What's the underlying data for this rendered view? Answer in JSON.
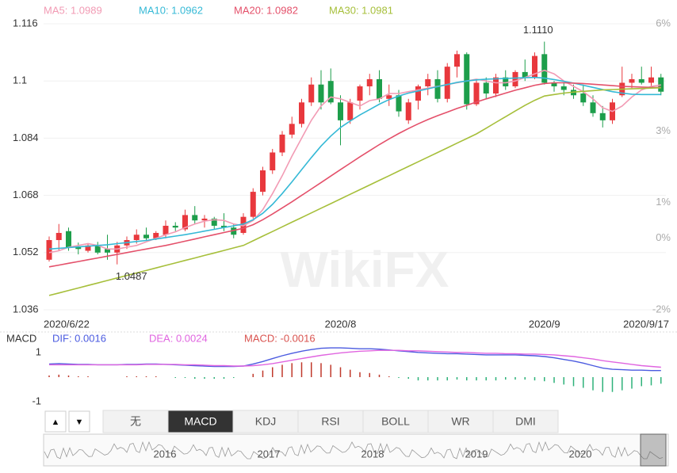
{
  "chart_data": [
    {
      "type": "candlestick",
      "categories": [
        "2020/6/22",
        null,
        null,
        null,
        null,
        null,
        null,
        null,
        null,
        null,
        null,
        null,
        null,
        null,
        null,
        null,
        null,
        null,
        null,
        null,
        null,
        null,
        null,
        null,
        null,
        null,
        null,
        null,
        null,
        null,
        "2020/8",
        null,
        null,
        null,
        null,
        null,
        null,
        null,
        null,
        null,
        null,
        null,
        null,
        null,
        null,
        null,
        null,
        null,
        null,
        null,
        null,
        "2020/9",
        null,
        null,
        null,
        null,
        null,
        null,
        null,
        null,
        null,
        null,
        null,
        "2020/9/17"
      ],
      "open": [
        1.05,
        1.0555,
        1.058,
        1.0535,
        1.0525,
        1.054,
        1.053,
        1.052,
        1.054,
        1.0555,
        1.057,
        1.056,
        1.057,
        1.0595,
        1.0585,
        1.0625,
        1.061,
        1.0615,
        1.0595,
        1.059,
        1.0575,
        1.062,
        1.069,
        1.075,
        1.08,
        1.085,
        1.088,
        1.094,
        1.099,
        1.1,
        1.094,
        1.089,
        1.0945,
        1.0985,
        1.1005,
        1.095,
        1.096,
        1.089,
        1.0945,
        1.0985,
        1.1005,
        1.095,
        1.104,
        1.1075,
        1.0935,
        1.0995,
        1.0965,
        1.101,
        1.0985,
        1.1025,
        1.101,
        1.1075,
        1.0995,
        1.0985,
        1.0975,
        1.0965,
        1.094,
        1.091,
        1.089,
        1.096,
        1.0995,
        1.1005,
        1.0995,
        1.101
      ],
      "high": [
        1.0565,
        1.06,
        1.059,
        1.0548,
        1.0545,
        1.055,
        1.057,
        1.055,
        1.0565,
        1.0585,
        1.059,
        1.058,
        1.061,
        1.0605,
        1.064,
        1.065,
        1.0625,
        1.062,
        1.063,
        1.06,
        1.063,
        1.07,
        1.076,
        1.081,
        1.086,
        1.09,
        1.095,
        1.101,
        1.103,
        1.1035,
        1.096,
        1.095,
        1.099,
        1.102,
        1.103,
        1.099,
        1.0975,
        1.095,
        1.099,
        1.102,
        1.103,
        1.105,
        1.1085,
        1.108,
        1.1005,
        1.101,
        1.102,
        1.103,
        1.103,
        1.106,
        1.108,
        1.111,
        1.1,
        1.0995,
        1.099,
        1.099,
        1.096,
        1.093,
        1.095,
        1.104,
        1.102,
        1.104,
        1.104,
        1.102
      ],
      "low": [
        1.0495,
        1.0525,
        1.0525,
        1.0515,
        1.052,
        1.0515,
        1.05,
        1.0487,
        1.053,
        1.0545,
        1.0555,
        1.0555,
        1.056,
        1.058,
        1.058,
        1.06,
        1.059,
        1.0585,
        1.058,
        1.056,
        1.057,
        1.0615,
        1.068,
        1.074,
        1.079,
        1.084,
        1.087,
        1.093,
        1.092,
        1.0935,
        1.082,
        1.088,
        1.092,
        1.096,
        1.094,
        1.093,
        1.09,
        1.088,
        1.092,
        1.096,
        1.094,
        1.094,
        1.101,
        1.092,
        1.093,
        1.095,
        1.0955,
        1.0975,
        1.098,
        1.1,
        1.1005,
        1.099,
        1.097,
        1.096,
        1.095,
        1.093,
        1.09,
        1.087,
        1.088,
        1.0955,
        1.098,
        1.099,
        1.0985,
        1.096
      ],
      "close": [
        1.0555,
        1.0575,
        1.0535,
        1.053,
        1.054,
        1.052,
        1.052,
        1.054,
        1.0555,
        1.057,
        1.056,
        1.0575,
        1.0595,
        1.059,
        1.0625,
        1.061,
        1.0615,
        1.0595,
        1.059,
        1.057,
        1.062,
        1.069,
        1.075,
        1.08,
        1.085,
        1.088,
        1.094,
        1.099,
        1.094,
        1.094,
        1.089,
        1.094,
        1.0985,
        1.1005,
        1.095,
        1.096,
        1.0915,
        1.094,
        1.0985,
        1.1005,
        1.095,
        1.104,
        1.1075,
        1.0935,
        1.0995,
        1.0965,
        1.101,
        1.0985,
        1.1025,
        1.101,
        1.107,
        1.0995,
        1.0985,
        1.0975,
        1.096,
        1.094,
        1.091,
        1.089,
        1.094,
        1.0995,
        1.1005,
        1.0995,
        1.101,
        1.097
      ],
      "up_color": "#e8383d",
      "down_color": "#1d9e4b",
      "series": [
        {
          "name": "MA5: 1.0989",
          "color": "#f29bb4",
          "values": [
            1.052,
            1.0525,
            1.0535,
            1.054,
            1.0545,
            1.054,
            1.053,
            1.053,
            1.0535,
            1.054,
            1.055,
            1.056,
            1.057,
            1.0578,
            1.059,
            1.06,
            1.0608,
            1.0612,
            1.061,
            1.06,
            1.0595,
            1.061,
            1.064,
            1.0685,
            1.0735,
            1.079,
            1.084,
            1.089,
            1.093,
            1.0955,
            1.095,
            1.094,
            1.093,
            1.0945,
            1.095,
            1.0965,
            1.0965,
            1.097,
            1.0975,
            1.098,
            1.0985,
            1.099,
            1.0995,
            1.1,
            1.1005,
            1.1,
            1.0995,
            1.0995,
            1.1,
            1.101,
            1.102,
            1.103,
            1.102,
            1.1,
            1.0985,
            1.097,
            1.095,
            1.0925,
            1.0915,
            1.093,
            1.0955,
            1.0975,
            1.0985,
            1.0989
          ]
        },
        {
          "name": "MA10: 1.0962",
          "color": "#35b9d6",
          "values": [
            1.053,
            1.0532,
            1.0534,
            1.0536,
            1.0538,
            1.054,
            1.0542,
            1.0545,
            1.0548,
            1.0551,
            1.0554,
            1.0558,
            1.0562,
            1.0566,
            1.057,
            1.0575,
            1.058,
            1.0585,
            1.059,
            1.0595,
            1.06,
            1.0612,
            1.063,
            1.0655,
            1.0685,
            1.0718,
            1.0752,
            1.0786,
            1.0818,
            1.0846,
            1.087,
            1.0888,
            1.0905,
            1.092,
            1.0935,
            1.0948,
            1.0958,
            1.0966,
            1.0972,
            1.0978,
            1.0984,
            1.099,
            1.0996,
            1.1,
            1.1003,
            1.1005,
            1.1006,
            1.1007,
            1.1008,
            1.1009,
            1.101,
            1.1008,
            1.1004,
            1.0999,
            1.0994,
            1.0988,
            1.0982,
            1.0976,
            1.097,
            1.0966,
            1.0963,
            1.0962,
            1.0962,
            1.0962
          ]
        },
        {
          "name": "MA20: 1.0982",
          "color": "#e4506a",
          "values": [
            1.048,
            1.0485,
            1.049,
            1.0495,
            1.05,
            1.0505,
            1.051,
            1.0515,
            1.052,
            1.0525,
            1.053,
            1.0535,
            1.054,
            1.0546,
            1.0552,
            1.0558,
            1.0564,
            1.057,
            1.0576,
            1.0582,
            1.0588,
            1.0598,
            1.0612,
            1.0628,
            1.0645,
            1.0662,
            1.068,
            1.0698,
            1.0716,
            1.0734,
            1.0752,
            1.077,
            1.0788,
            1.0805,
            1.0822,
            1.0838,
            1.0853,
            1.0867,
            1.088,
            1.0892,
            1.0903,
            1.0913,
            1.0923,
            1.0932,
            1.0941,
            1.095,
            1.0958,
            1.0966,
            1.0974,
            1.0981,
            1.0988,
            1.0993,
            1.0995,
            1.0995,
            1.0994,
            1.0993,
            1.0991,
            1.0989,
            1.0987,
            1.0985,
            1.0984,
            1.0983,
            1.0982,
            1.0982
          ]
        },
        {
          "name": "MA30: 1.0981",
          "color": "#a6bf3a",
          "values": [
            1.04,
            1.0407,
            1.0414,
            1.0421,
            1.0428,
            1.0435,
            1.0442,
            1.0449,
            1.0456,
            1.0463,
            1.047,
            1.0477,
            1.0484,
            1.0491,
            1.0498,
            1.0505,
            1.0512,
            1.0519,
            1.0526,
            1.0533,
            1.054,
            1.0553,
            1.0566,
            1.0579,
            1.0592,
            1.0605,
            1.0618,
            1.0631,
            1.0644,
            1.0657,
            1.067,
            1.0683,
            1.0696,
            1.0709,
            1.0722,
            1.0735,
            1.0748,
            1.0761,
            1.0774,
            1.0787,
            1.08,
            1.0813,
            1.0826,
            1.0839,
            1.0852,
            1.0868,
            1.0884,
            1.09,
            1.0916,
            1.0932,
            1.0946,
            1.0958,
            1.0962,
            1.0966,
            1.0969,
            1.0971,
            1.0973,
            1.0975,
            1.0976,
            1.0977,
            1.0978,
            1.0979,
            1.098,
            1.0981
          ]
        }
      ],
      "max_label": "1.1110",
      "min_label": "1.0487",
      "ylim": [
        1.036,
        1.116
      ],
      "yticks": [
        1.116,
        1.1,
        1.084,
        1.068,
        1.052,
        1.036
      ],
      "y2lim": [
        -2,
        6
      ],
      "y2ticks": [
        {
          "value": 6,
          "label": "6%"
        },
        {
          "value": 3,
          "label": "3%"
        },
        {
          "value": 1,
          "label": "1%"
        },
        {
          "value": 0,
          "label": "0%"
        },
        {
          "value": -2,
          "label": "-2%"
        }
      ],
      "grid": true,
      "watermark": "WikiFX"
    },
    {
      "type": "macd",
      "title": "MACD",
      "series": [
        {
          "name": "DIF: 0.0016",
          "color": "#4b5be0",
          "values": [
            0.0032,
            0.0033,
            0.0032,
            0.0031,
            0.0031,
            0.003,
            0.003,
            0.003,
            0.0031,
            0.0031,
            0.0032,
            0.0032,
            0.0031,
            0.003,
            0.0029,
            0.0028,
            0.0027,
            0.0026,
            0.0026,
            0.0026,
            0.0027,
            0.0032,
            0.0038,
            0.0045,
            0.0052,
            0.0058,
            0.0063,
            0.0067,
            0.007,
            0.0071,
            0.0071,
            0.007,
            0.0069,
            0.0069,
            0.0068,
            0.0066,
            0.0064,
            0.0062,
            0.006,
            0.0059,
            0.0058,
            0.0057,
            0.0057,
            0.0056,
            0.0055,
            0.0054,
            0.0054,
            0.0054,
            0.0054,
            0.0053,
            0.0052,
            0.005,
            0.0047,
            0.0043,
            0.0039,
            0.0034,
            0.0028,
            0.0022,
            0.0019,
            0.0018,
            0.0017,
            0.0017,
            0.0016,
            0.0016
          ]
        },
        {
          "name": "DEA: 0.0024",
          "color": "#e065e0",
          "values": [
            0.003,
            0.003,
            0.003,
            0.003,
            0.003,
            0.003,
            0.003,
            0.003,
            0.003,
            0.003,
            0.0031,
            0.0031,
            0.0031,
            0.0031,
            0.003,
            0.003,
            0.0029,
            0.0028,
            0.0028,
            0.0027,
            0.0027,
            0.0028,
            0.003,
            0.0033,
            0.0037,
            0.0041,
            0.0045,
            0.0049,
            0.0053,
            0.0056,
            0.0059,
            0.0061,
            0.0063,
            0.0064,
            0.0065,
            0.0065,
            0.0065,
            0.0064,
            0.0064,
            0.0063,
            0.0062,
            0.0061,
            0.006,
            0.006,
            0.0059,
            0.0058,
            0.0058,
            0.0057,
            0.0057,
            0.0056,
            0.0056,
            0.0055,
            0.0054,
            0.0052,
            0.005,
            0.0047,
            0.0044,
            0.004,
            0.0037,
            0.0034,
            0.0031,
            0.0028,
            0.0026,
            0.0024
          ]
        }
      ],
      "histogram": {
        "name": "MACD: -0.0016",
        "label_color": "#d9534f",
        "up_color": "#c0392b",
        "down_color": "#2fb27a",
        "values": [
          0.0004,
          0.0006,
          0.0004,
          0.0002,
          0.0002,
          0,
          0,
          0,
          0.0002,
          0.0002,
          0.0002,
          0.0002,
          0,
          -0.0002,
          -0.0002,
          -0.0004,
          -0.0004,
          -0.0004,
          -0.0004,
          -0.0002,
          0,
          0.0008,
          0.0016,
          0.0024,
          0.003,
          0.0034,
          0.0036,
          0.0036,
          0.0034,
          0.003,
          0.0024,
          0.0018,
          0.0012,
          0.001,
          0.0006,
          0.0002,
          -0.0002,
          -0.0004,
          -0.0008,
          -0.0008,
          -0.0008,
          -0.0008,
          -0.0006,
          -0.0008,
          -0.0008,
          -0.0008,
          -0.0008,
          -0.0006,
          -0.0006,
          -0.0006,
          -0.0008,
          -0.001,
          -0.0014,
          -0.0018,
          -0.0022,
          -0.0026,
          -0.0032,
          -0.0036,
          -0.0036,
          -0.0032,
          -0.0028,
          -0.0022,
          -0.002,
          -0.0016
        ]
      },
      "ylim": [
        -0.0077,
        0.0077
      ],
      "yticks": [
        {
          "value": 0.006,
          "label": "1"
        },
        {
          "value": -0.006,
          "label": "-1"
        }
      ]
    }
  ],
  "ui": {
    "arrows": [
      "▲",
      "▼"
    ],
    "tabs": [
      "无",
      "MACD",
      "KDJ",
      "RSI",
      "BOLL",
      "WR",
      "DMI"
    ],
    "active_tab": 1,
    "navigator_years": [
      "2016",
      "2017",
      "2018",
      "2019",
      "2020"
    ]
  }
}
